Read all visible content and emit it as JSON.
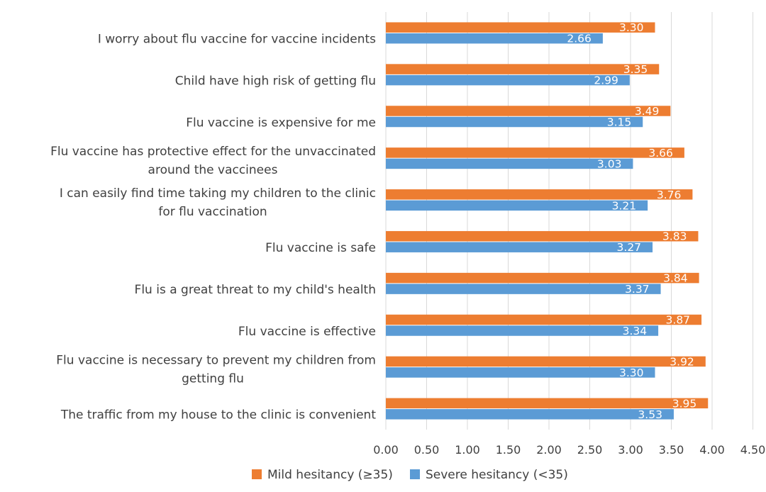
{
  "chart_data": {
    "type": "bar",
    "orientation": "horizontal",
    "categories": [
      [
        "I worry about flu vaccine for vaccine incidents"
      ],
      [
        "Child have high risk of getting flu"
      ],
      [
        "Flu vaccine is expensive for me"
      ],
      [
        "Flu vaccine has protective effect for the unvaccinated",
        "around the vaccinees"
      ],
      [
        "I can easily find time taking my children to the clinic",
        "for flu vaccination"
      ],
      [
        "Flu vaccine is safe"
      ],
      [
        "Flu is a great threat to my child's health"
      ],
      [
        "Flu vaccine is effective"
      ],
      [
        "Flu vaccine is necessary to prevent my children from",
        "getting flu"
      ],
      [
        "The traffic from my house to the clinic is convenient"
      ]
    ],
    "series": [
      {
        "name": "Mild hesitancy (≥35)",
        "color": "#ED7D31",
        "values": [
          3.3,
          3.35,
          3.49,
          3.66,
          3.76,
          3.83,
          3.84,
          3.87,
          3.92,
          3.95
        ],
        "labels": [
          "3.30",
          "3.35",
          "3.49",
          "3.66",
          "3.76",
          "3.83",
          "3.84",
          "3.87",
          "3.92",
          "3.95"
        ]
      },
      {
        "name": "Severe hesitancy (<35)",
        "color": "#5B9BD5",
        "values": [
          2.66,
          2.99,
          3.15,
          3.03,
          3.21,
          3.27,
          3.37,
          3.34,
          3.3,
          3.53
        ],
        "labels": [
          "2.66",
          "2.99",
          "3.15",
          "3.03",
          "3.21",
          "3.27",
          "3.37",
          "3.34",
          "3.30",
          "3.53"
        ]
      }
    ],
    "xlim": [
      0,
      4.5
    ],
    "ticks": [
      "0.00",
      "0.50",
      "1.00",
      "1.50",
      "2.00",
      "2.50",
      "3.00",
      "3.50",
      "4.00",
      "4.50"
    ],
    "grid": true,
    "legend_position": "bottom",
    "gridline_color": "#D9D9D9"
  }
}
